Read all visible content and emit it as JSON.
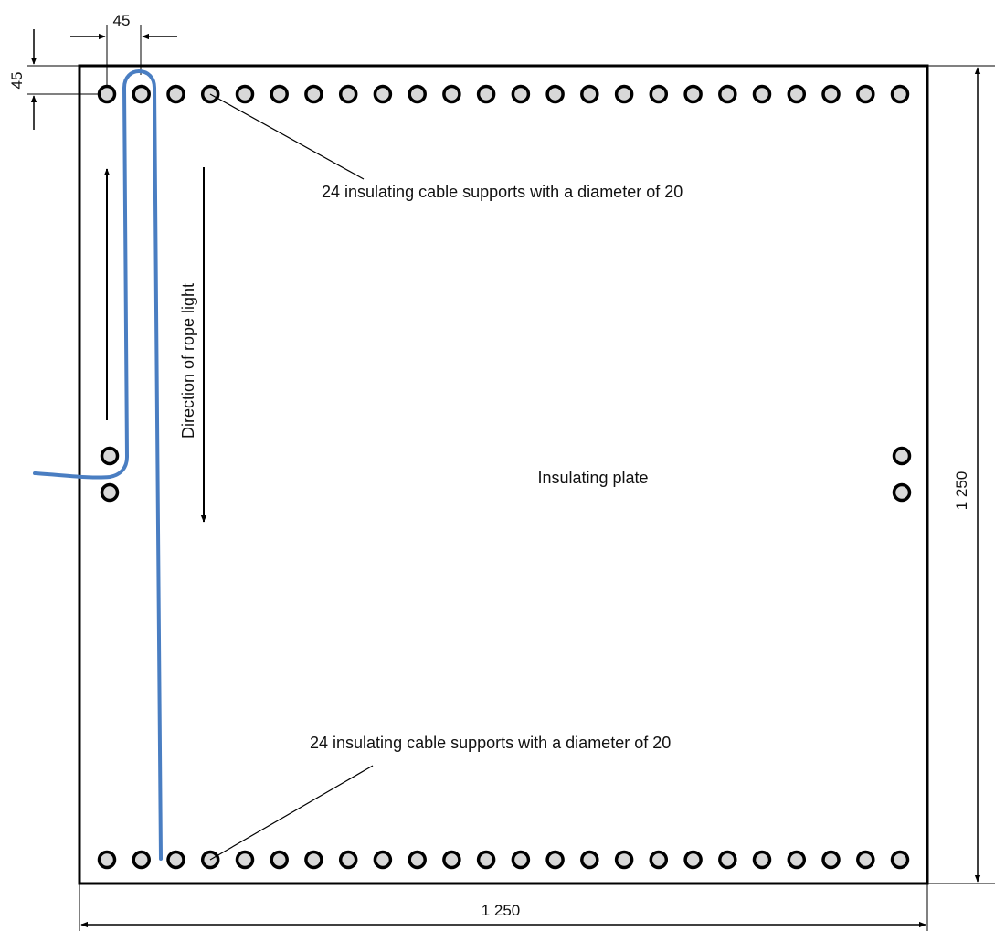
{
  "labels": {
    "top_supports": "24 insulating cable supports with a diameter of 20",
    "bottom_supports": "24 insulating cable supports with a diameter of 20",
    "direction": "Direction of rope light",
    "plate": "Insulating plate"
  },
  "dimensions": {
    "spacing_horizontal": "45",
    "spacing_vertical": "45",
    "width": "1 250",
    "height": "1 250"
  },
  "supports": {
    "top_row_count": 24,
    "bottom_row_count": 24
  },
  "colors": {
    "rope": "#4a7ec2",
    "line": "#000000",
    "support_fill": "#d8d8d8"
  }
}
